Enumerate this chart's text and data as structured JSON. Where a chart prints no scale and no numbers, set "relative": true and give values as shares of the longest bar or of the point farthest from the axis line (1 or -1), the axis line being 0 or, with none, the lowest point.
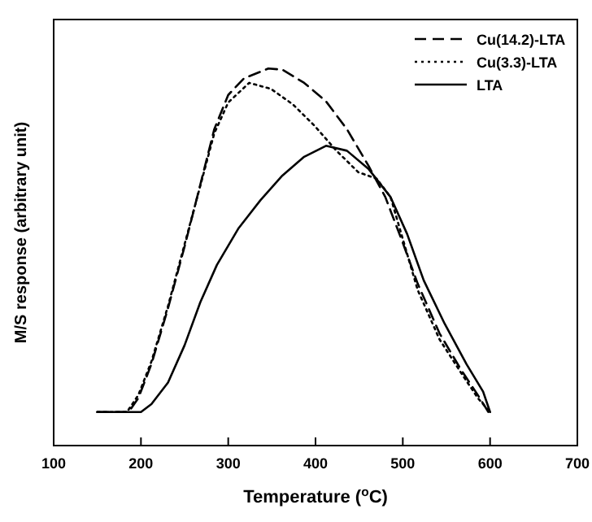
{
  "chart_data": {
    "type": "line",
    "relative": true,
    "xlabel": "Temperature ($^{o}$C)",
    "ylabel": "M/S response (arbitrary unit)",
    "xlim": [
      100,
      700
    ],
    "xticks": [
      100,
      200,
      300,
      400,
      500,
      600,
      700
    ],
    "legend": "top right",
    "marker": "none",
    "series": [
      {
        "name": "Cu(14.2)-LTA",
        "color": "#000000",
        "line_style": "dashed",
        "x": [
          150,
          186,
          197,
          212,
          231,
          250,
          268,
          284,
          300,
          318,
          346,
          362,
          387,
          412,
          436,
          461,
          480,
          499,
          517,
          542,
          567,
          586,
          598
        ],
        "values": [
          0.089,
          0.089,
          0.126,
          0.216,
          0.364,
          0.528,
          0.692,
          0.839,
          0.93,
          0.974,
          1.0,
          0.997,
          0.962,
          0.913,
          0.839,
          0.741,
          0.659,
          0.544,
          0.43,
          0.298,
          0.2,
          0.134,
          0.089
        ]
      },
      {
        "name": "Cu(3.3)-LTA",
        "color": "#000000",
        "line_style": "dotted",
        "x": [
          150,
          184,
          197,
          212,
          231,
          250,
          268,
          284,
          300,
          324,
          349,
          374,
          399,
          424,
          449,
          470,
          486,
          517,
          542,
          567,
          586,
          600
        ],
        "values": [
          0.089,
          0.089,
          0.134,
          0.223,
          0.37,
          0.534,
          0.689,
          0.828,
          0.91,
          0.962,
          0.946,
          0.905,
          0.848,
          0.782,
          0.725,
          0.708,
          0.659,
          0.413,
          0.282,
          0.192,
          0.126,
          0.089
        ]
      },
      {
        "name": "LTA",
        "color": "#000000",
        "line_style": "solid",
        "x": [
          150,
          200,
          212,
          231,
          250,
          268,
          287,
          312,
          337,
          362,
          387,
          412,
          436,
          461,
          486,
          505,
          524,
          548,
          573,
          592,
          600
        ],
        "values": [
          0.089,
          0.089,
          0.11,
          0.167,
          0.266,
          0.38,
          0.479,
          0.577,
          0.651,
          0.716,
          0.766,
          0.795,
          0.782,
          0.733,
          0.659,
          0.561,
          0.438,
          0.323,
          0.216,
          0.143,
          0.089
        ]
      }
    ]
  }
}
